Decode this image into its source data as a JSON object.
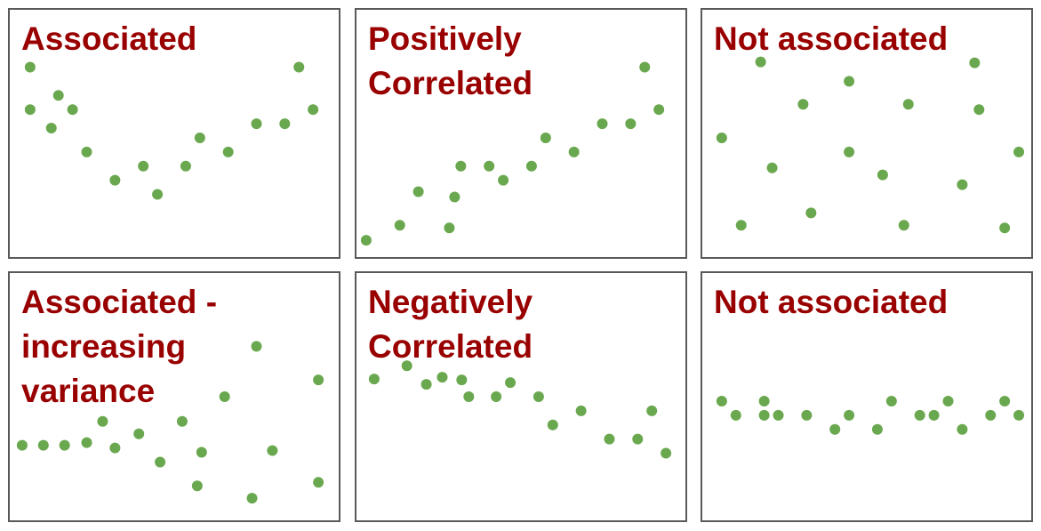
{
  "chart_data": [
    {
      "type": "scatter",
      "title": "Associated",
      "color": "#6aa84f",
      "xlim": [
        0,
        372
      ],
      "ylim": [
        0,
        280
      ],
      "x": [
        23,
        23,
        47,
        55,
        71,
        87,
        119,
        151,
        167,
        199,
        215,
        247,
        279,
        311,
        327,
        343
      ],
      "values": [
        215,
        167,
        146,
        183,
        167,
        119,
        87,
        103,
        71,
        103,
        135,
        119,
        151,
        151,
        215,
        167
      ]
    },
    {
      "type": "scatter",
      "title": "Positively Correlated",
      "color": "#6aa84f",
      "xlim": [
        0,
        372
      ],
      "ylim": [
        0,
        280
      ],
      "x": [
        11,
        49,
        70,
        105,
        111,
        118,
        150,
        166,
        198,
        214,
        246,
        278,
        310,
        326,
        342
      ],
      "values": [
        19,
        36,
        74,
        33,
        68,
        103,
        103,
        87,
        103,
        135,
        119,
        151,
        151,
        215,
        167
      ]
    },
    {
      "type": "scatter",
      "title": "Not associated",
      "color": "#6aa84f",
      "xlim": [
        0,
        372
      ],
      "ylim": [
        0,
        280
      ],
      "x": [
        22,
        44,
        66,
        79,
        114,
        123,
        166,
        166,
        204,
        228,
        233,
        294,
        308,
        313,
        342,
        358
      ],
      "values": [
        135,
        36,
        221,
        101,
        173,
        50,
        199,
        119,
        93,
        36,
        173,
        82,
        220,
        167,
        33,
        119
      ]
    },
    {
      "type": "scatter",
      "title": "Associated - increasing variance",
      "color": "#6aa84f",
      "xlim": [
        0,
        372
      ],
      "ylim": [
        0,
        280
      ],
      "x": [
        14,
        38,
        62,
        87,
        105,
        119,
        146,
        170,
        195,
        212,
        217,
        243,
        274,
        279,
        297,
        349,
        349
      ],
      "values": [
        85,
        85,
        85,
        88,
        112,
        82,
        98,
        66,
        112,
        39,
        77,
        140,
        25,
        197,
        79,
        159,
        43
      ]
    },
    {
      "type": "scatter",
      "title": "Negatively Correlated",
      "color": "#6aa84f",
      "xlim": [
        0,
        372
      ],
      "ylim": [
        0,
        280
      ],
      "x": [
        20,
        57,
        79,
        97,
        119,
        127,
        158,
        174,
        206,
        222,
        254,
        286,
        318,
        334,
        350
      ],
      "values": [
        160,
        175,
        154,
        162,
        159,
        140,
        140,
        156,
        140,
        108,
        124,
        92,
        92,
        124,
        76
      ]
    },
    {
      "type": "scatter",
      "title": "Not associated",
      "color": "#6aa84f",
      "xlim": [
        0,
        372
      ],
      "ylim": [
        0,
        280
      ],
      "x": [
        22,
        38,
        70,
        70,
        86,
        118,
        150,
        166,
        198,
        214,
        246,
        262,
        278,
        294,
        326,
        342,
        358
      ],
      "values": [
        135,
        119,
        135,
        119,
        119,
        119,
        103,
        119,
        103,
        135,
        119,
        119,
        135,
        103,
        119,
        135,
        119
      ]
    }
  ]
}
